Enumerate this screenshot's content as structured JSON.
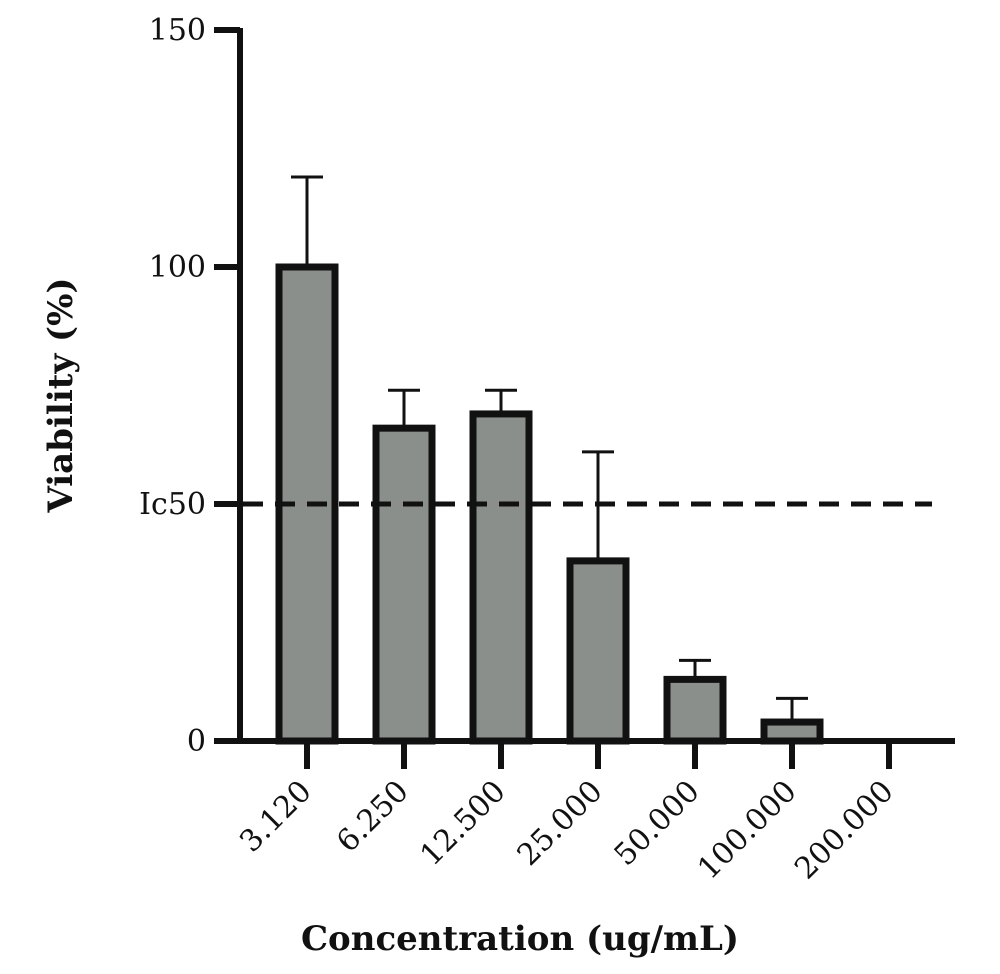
{
  "chart_data": {
    "type": "bar",
    "title": "",
    "xlabel": "Concentration (ug/mL)",
    "ylabel": "Viability (%)",
    "categories": [
      "3.120",
      "6.250",
      "12.500",
      "25.000",
      "50.000",
      "100.000",
      "200.000"
    ],
    "values": [
      100,
      66,
      69,
      38,
      13,
      4,
      0
    ],
    "errors": [
      19,
      8,
      5,
      23,
      4,
      5,
      0
    ],
    "ylim": [
      0,
      150
    ],
    "yticks": [
      {
        "value": 0,
        "label": "0"
      },
      {
        "value": 50,
        "label": "Ic50"
      },
      {
        "value": 100,
        "label": "100"
      },
      {
        "value": 150,
        "label": "150"
      }
    ],
    "reference_line": {
      "value": 50,
      "style": "dashed",
      "color": "#111111"
    },
    "grid": false,
    "legend": "none",
    "colors": {
      "bar_fill": "#8a8f8c",
      "bar_edge": "#111111",
      "axis": "#111111"
    }
  }
}
